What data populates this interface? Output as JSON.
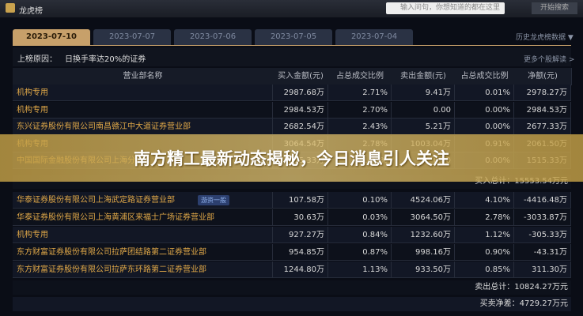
{
  "header": {
    "title": "龙虎榜",
    "search_placeholder": "输入问句，你想知道的都在这里",
    "search_button": "开始搜索"
  },
  "tabs": [
    "2023-07-10",
    "2023-07-07",
    "2023-07-06",
    "2023-07-05",
    "2023-07-04"
  ],
  "history_link": "历史龙虎榜数据 ▼",
  "reason": {
    "label": "上榜原因：",
    "text": "日换手率达20%的证券",
    "more": "更多个股解读 >"
  },
  "table": {
    "columns": [
      "营业部名称",
      "买入金额(元)",
      "占总成交比例",
      "卖出金额(元)",
      "占总成交比例",
      "净额(元)"
    ],
    "buy_rows": [
      [
        "机构专用",
        "2987.68万",
        "2.71%",
        "9.41万",
        "0.01%",
        "2978.27万"
      ],
      [
        "机构专用",
        "2984.53万",
        "2.70%",
        "0.00",
        "0.00%",
        "2984.53万"
      ],
      [
        "东兴证券股份有限公司南昌赣江中大道证券营业部",
        "2682.54万",
        "2.43%",
        "5.21万",
        "0.00%",
        "2677.33万"
      ],
      [
        "机构专用",
        "3064.54万",
        "2.78%",
        "1003.04万",
        "0.91%",
        "2061.50万"
      ],
      [
        "中国国际金融股份有限公司上海分公司",
        "1515.33万",
        "1.37%",
        "0.00",
        "0.00%",
        "1515.33万"
      ]
    ],
    "buy_total": "买入总计：15553.54万元",
    "sell_rows": [
      [
        "华泰证券股份有限公司上海武定路证券营业部",
        "107.58万",
        "0.10%",
        "4524.06万",
        "4.10%",
        "-4416.48万"
      ],
      [
        "华泰证券股份有限公司上海黄浦区来福士广场证券营业部",
        "30.63万",
        "0.03%",
        "3064.50万",
        "2.78%",
        "-3033.87万"
      ],
      [
        "机构专用",
        "927.27万",
        "0.84%",
        "1232.60万",
        "1.12%",
        "-305.33万"
      ],
      [
        "东方财富证券股份有限公司拉萨团结路第二证券营业部",
        "954.85万",
        "0.87%",
        "998.16万",
        "0.90%",
        "-43.31万"
      ],
      [
        "东方财富证券股份有限公司拉萨东环路第二证券营业部",
        "1244.80万",
        "1.13%",
        "933.50万",
        "0.85%",
        "311.30万"
      ]
    ],
    "sell_tag": "游资一般",
    "sell_total": "卖出总计：10824.27万元",
    "net_total": "买卖净差：4729.27万元"
  },
  "banner": "南方精工最新动态揭秘，今日消息引人关注"
}
